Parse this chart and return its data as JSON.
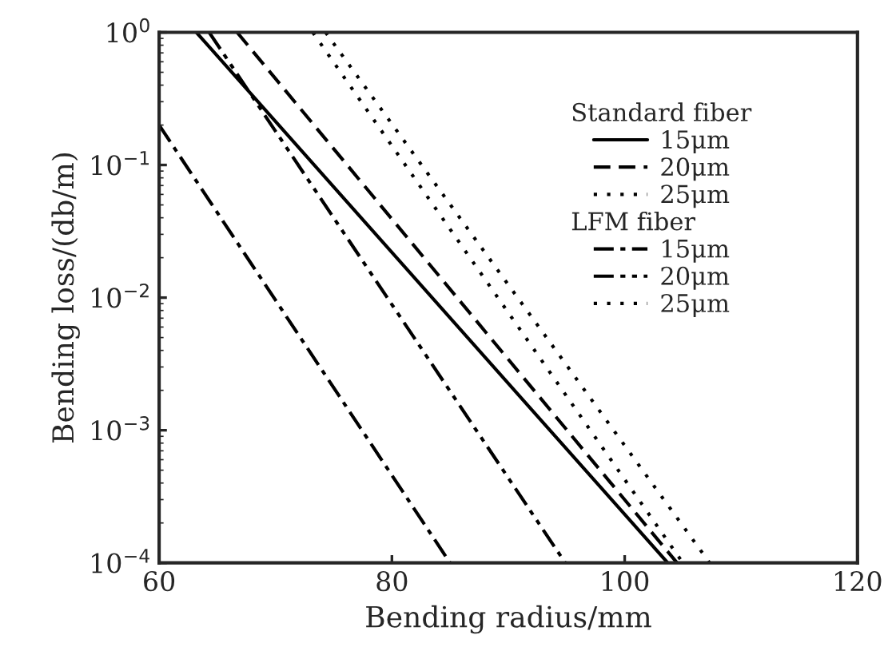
{
  "chart_data": {
    "type": "line",
    "xlabel": "Bending radius/mm",
    "ylabel": "Bending loss/(db/m)",
    "log": "y",
    "grid": false,
    "legend": "top right",
    "marker": "none",
    "xlim": [
      60,
      120
    ],
    "xticks": [
      60,
      80,
      100,
      120
    ],
    "ylim": [
      0.0001,
      1
    ],
    "yticks": [
      {
        "value": 0.0001,
        "label": "10$^{−4}$"
      },
      {
        "value": 0.001,
        "label": "10$^{−3}$"
      },
      {
        "value": 0.01,
        "label": "10$^{−2}$"
      },
      {
        "value": 0.1,
        "label": "10$^{−1}$"
      },
      {
        "value": 1,
        "label": "10$^{0}$"
      }
    ],
    "annotations": [
      "Standard fiber",
      "LFM fiber"
    ],
    "series": [
      {
        "name": "15μm",
        "color": "#000000",
        "line_style": "solid",
        "x": [
          63.2,
          103.7
        ],
        "values": [
          1,
          0.0001
        ]
      },
      {
        "name": "20μm",
        "color": "#000000",
        "line_style": "dashed",
        "x": [
          66.7,
          104.5
        ],
        "values": [
          1,
          0.0001
        ]
      },
      {
        "name": "25μm",
        "color": "#000000",
        "line_style": "dotted",
        "x": [
          74.3,
          107.3
        ],
        "values": [
          1,
          0.0001
        ]
      },
      {
        "name": "15μm",
        "color": "#000000",
        "line_style": "dashdot",
        "x": [
          60,
          85.0
        ],
        "values": [
          0.2,
          0.0001
        ]
      },
      {
        "name": "20μm",
        "color": "#000000",
        "line_style": "dashdotdot",
        "x": [
          64.3,
          94.9
        ],
        "values": [
          1,
          0.0001
        ]
      },
      {
        "name": "25μm",
        "color": "#000000",
        "line_style": "dotted",
        "x": [
          73.2,
          105.0
        ],
        "values": [
          1,
          0.0001
        ]
      }
    ]
  }
}
